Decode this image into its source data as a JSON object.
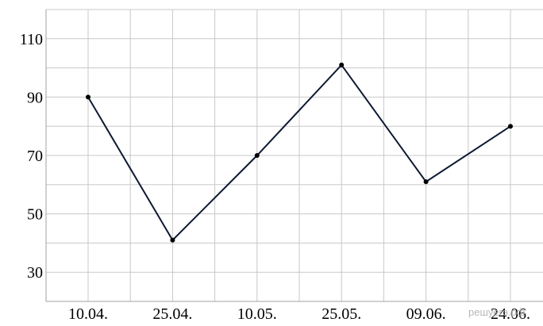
{
  "chart_data": {
    "type": "line",
    "categories": [
      "10.04.",
      "25.04.",
      "10.05.",
      "25.05.",
      "09.06.",
      "24.06."
    ],
    "series": [
      {
        "values": [
          90,
          41,
          70,
          101,
          61,
          80
        ]
      }
    ],
    "y_ticks": [
      "30",
      "50",
      "70",
      "90",
      "110"
    ],
    "ylim": [
      20,
      120
    ],
    "grid": true,
    "line_color": "#0e1a33",
    "point_color": "#000000",
    "watermark": "решуегэ.рф"
  }
}
